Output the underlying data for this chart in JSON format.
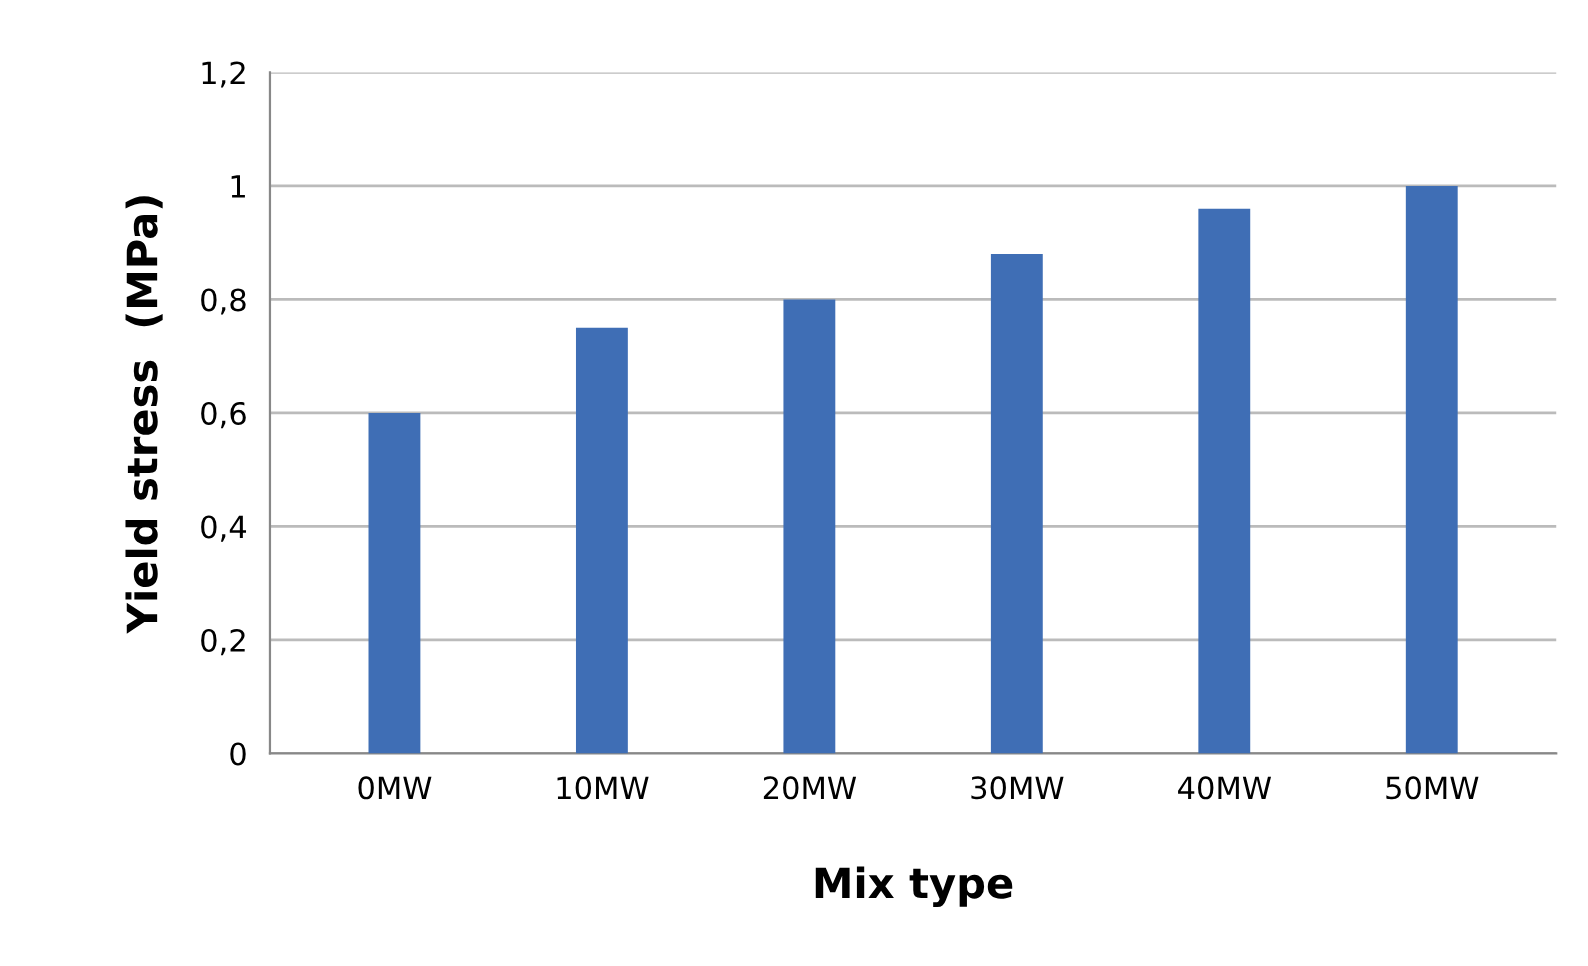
{
  "chart_data": {
    "type": "bar",
    "xlabel": "Mix type",
    "ylabel": "Yield stress  (MPa)",
    "categories": [
      "0MW",
      "10MW",
      "20MW",
      "30MW",
      "40MW",
      "50MW"
    ],
    "values": [
      0.6,
      0.75,
      0.8,
      0.88,
      0.96,
      1.0
    ],
    "color": "#3f6eb5",
    "ylim": [
      0,
      1.2
    ],
    "yticks": [
      0,
      {
        "value": 0.2,
        "label": "0,2"
      },
      {
        "value": 0.4,
        "label": "0,4"
      },
      {
        "value": 0.6,
        "label": "0,6"
      },
      {
        "value": 0.8,
        "label": "0,8"
      },
      1,
      {
        "value": 1.2,
        "label": "1,2"
      }
    ],
    "grid": "y",
    "legend": false
  }
}
